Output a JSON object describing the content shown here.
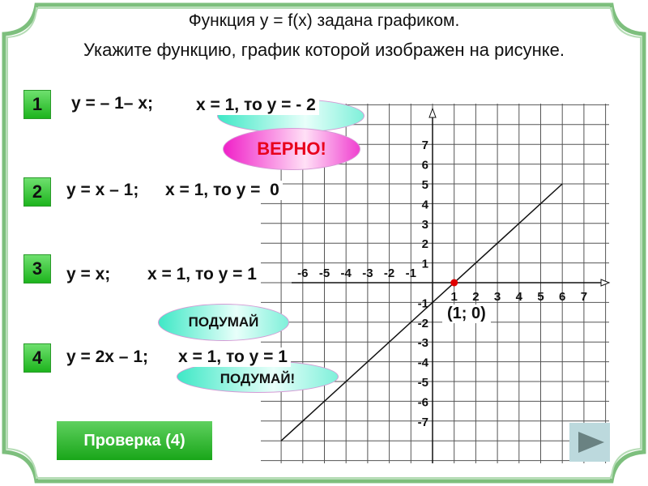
{
  "title": {
    "line1": "Функция    y = f(x)  задана графиком.",
    "line2": "Укажите функцию, график которой изображен на рисунке."
  },
  "options": [
    {
      "number": "1",
      "equation": "y = – 1– x;",
      "check": "x = 1, то y = - 2"
    },
    {
      "number": "2",
      "equation": "y = x – 1;",
      "check": "x = 1, то y =  0"
    },
    {
      "number": "3",
      "equation": "y = x;",
      "check": "x = 1, то y = 1"
    },
    {
      "number": "4",
      "equation": "y = 2x – 1;",
      "check": "x = 1, то y = 1"
    }
  ],
  "feedback": {
    "correct": "ВЕРНО!",
    "think1": "ПОДУМАЙ",
    "think2": "ПОДУМАЙ!"
  },
  "graph": {
    "x_ticks": [
      "-6",
      "-5",
      "-4",
      "-3",
      "-2",
      "-1",
      "1",
      "2",
      "3",
      "4",
      "5",
      "6",
      "7"
    ],
    "y_ticks": [
      "7",
      "6",
      "5",
      "4",
      "3",
      "2",
      "1",
      "-1",
      "-2",
      "-3",
      "-4",
      "-5",
      "-6",
      "-7"
    ],
    "point_label": "(1; 0)",
    "point": [
      1,
      0
    ],
    "line_from": [
      -7,
      -8
    ],
    "line_to": [
      6,
      5
    ],
    "point_color": "#e00000"
  },
  "check_button": "Проверка (4)",
  "next_icon": "play-triangle-icon",
  "accent_color": "#7dbf7d"
}
